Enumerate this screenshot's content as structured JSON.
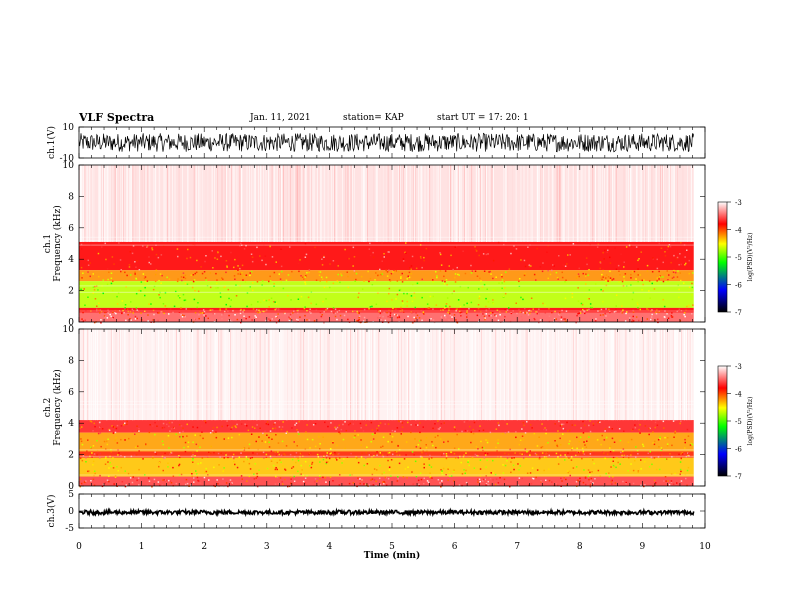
{
  "header": {
    "title": "VLF Spectra",
    "date": "Jan. 11, 2021",
    "station": "station= KAP",
    "start": "start  UT =   17: 20: 1"
  },
  "colors": {
    "spectrogram_palette": [
      "#000000",
      "#0000ff",
      "#00ff00",
      "#ffff00",
      "#ff0000",
      "#ffffff"
    ],
    "line": "#000000"
  },
  "chart_data": [
    {
      "type": "line",
      "panel": "ch1-waveform",
      "ylabel": "ch.1(V)",
      "ylim": [
        -10,
        10
      ],
      "yticks": [
        "10",
        "-10"
      ],
      "xlim": [
        0,
        10
      ],
      "x_extent_min": 9.82,
      "mean": 0,
      "amplitude": 6,
      "description_values": "noisy waveform spanning roughly -6 to +6 V across 0 to 9.8 min"
    },
    {
      "type": "heatmap",
      "panel": "ch1-spectrogram",
      "ylabel": "ch.1 Frequency (kHz)",
      "ylim": [
        0,
        10
      ],
      "yticks": [
        "0",
        "2",
        "4",
        "6",
        "8",
        "10"
      ],
      "xlim": [
        0,
        10
      ],
      "x_extent_min": 9.82,
      "color_scale": {
        "label": "log(PSD)(V²/Hz)",
        "range": [
          -7,
          -3
        ],
        "ticks": [
          "-3",
          "-4",
          "-5",
          "-6",
          "-7"
        ]
      },
      "bands": [
        {
          "f_low": 5.1,
          "f_high": 10,
          "level": -3.1
        },
        {
          "f_low": 3.3,
          "f_high": 5.1,
          "level": -3.8
        },
        {
          "f_low": 2.6,
          "f_high": 3.3,
          "level": -4.2
        },
        {
          "f_low": 0.9,
          "f_high": 2.6,
          "level": -4.7
        },
        {
          "f_low": 0.6,
          "f_high": 0.9,
          "level": -3.8
        },
        {
          "f_low": 0,
          "f_high": 0.6,
          "level": -3.5
        }
      ]
    },
    {
      "type": "heatmap",
      "panel": "ch2-spectrogram",
      "ylabel": "ch.2 Frequency (kHz)",
      "ylim": [
        0,
        10
      ],
      "yticks": [
        "0",
        "2",
        "4",
        "6",
        "8",
        "10"
      ],
      "xlim": [
        0,
        10
      ],
      "x_extent_min": 9.82,
      "color_scale": {
        "label": "log(PSD)(V²/Hz)",
        "range": [
          -7,
          -3
        ],
        "ticks": [
          "-3",
          "-4",
          "-5",
          "-6",
          "-7"
        ]
      },
      "bands": [
        {
          "f_low": 4.2,
          "f_high": 10,
          "level": -3.05
        },
        {
          "f_low": 3.4,
          "f_high": 4.2,
          "level": -3.7
        },
        {
          "f_low": 2.2,
          "f_high": 3.4,
          "level": -4.25
        },
        {
          "f_low": 1.8,
          "f_high": 2.2,
          "level": -3.9
        },
        {
          "f_low": 0.6,
          "f_high": 1.8,
          "level": -4.35
        },
        {
          "f_low": 0,
          "f_high": 0.6,
          "level": -3.6
        }
      ]
    },
    {
      "type": "line",
      "panel": "ch3-waveform",
      "ylabel": "ch.3(V)",
      "ylim": [
        -5,
        5
      ],
      "yticks": [
        "5",
        "0",
        "-5"
      ],
      "xlim": [
        0,
        10
      ],
      "x_extent_min": 9.82,
      "mean": -0.4,
      "amplitude": 0.6
    }
  ],
  "xaxis": {
    "label": "Time (min)",
    "ticks": [
      "0",
      "1",
      "2",
      "3",
      "4",
      "5",
      "6",
      "7",
      "8",
      "9",
      "10"
    ]
  }
}
